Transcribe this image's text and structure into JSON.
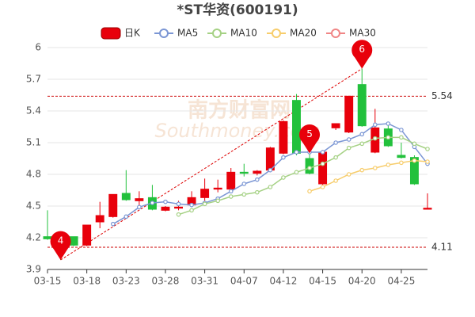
{
  "chart_data": {
    "type": "candlestick",
    "title": "*ST华资(600191)",
    "watermark": [
      "南方财富网",
      "Southmoney.com"
    ],
    "candle_name": "日K",
    "up_color": "#e8000b",
    "down_color": "#22c13c",
    "categories": [
      "03-15",
      null,
      null,
      "03-18",
      null,
      null,
      "03-23",
      null,
      null,
      "03-28",
      null,
      null,
      "03-31",
      null,
      null,
      "04-07",
      null,
      null,
      "04-12",
      null,
      null,
      "04-15",
      null,
      null,
      "04-20",
      null,
      null,
      "04-25",
      null,
      null
    ],
    "open": [
      4.21,
      4.19,
      4.21,
      4.13,
      4.35,
      4.4,
      4.62,
      4.55,
      4.58,
      4.46,
      4.48,
      4.51,
      4.58,
      4.66,
      4.66,
      4.82,
      4.81,
      4.84,
      5.0,
      5.5,
      4.95,
      4.71,
      5.24,
      5.2,
      5.65,
      5.01,
      5.23,
      4.98,
      4.96,
      4.47
    ],
    "high": [
      4.46,
      4.22,
      4.21,
      4.32,
      4.54,
      4.61,
      4.84,
      4.64,
      4.7,
      4.5,
      4.55,
      4.64,
      4.76,
      4.75,
      4.86,
      4.9,
      4.84,
      5.06,
      5.31,
      5.56,
      5.0,
      5.03,
      5.28,
      5.54,
      5.8,
      5.42,
      5.27,
      5.1,
      4.98,
      4.62
    ],
    "low": [
      4.18,
      3.99,
      4.12,
      4.12,
      4.29,
      4.39,
      4.55,
      4.5,
      4.46,
      4.45,
      4.46,
      4.49,
      4.55,
      4.63,
      4.64,
      4.78,
      4.79,
      4.82,
      4.99,
      4.98,
      4.8,
      4.7,
      5.22,
      5.19,
      5.25,
      5.0,
      5.06,
      4.95,
      4.7,
      4.47
    ],
    "close": [
      4.19,
      4.14,
      4.13,
      4.32,
      4.41,
      4.61,
      4.56,
      4.57,
      4.47,
      4.49,
      4.49,
      4.58,
      4.66,
      4.67,
      4.82,
      4.81,
      4.83,
      5.05,
      5.3,
      5.0,
      4.81,
      5.01,
      5.28,
      5.54,
      5.26,
      5.24,
      5.07,
      4.96,
      4.71,
      4.48
    ],
    "series": [
      {
        "name": "MA5",
        "color": "#7b96d4",
        "values": [
          null,
          null,
          null,
          null,
          null,
          4.33,
          4.4,
          4.49,
          4.53,
          4.54,
          4.52,
          4.51,
          4.53,
          4.57,
          4.64,
          4.71,
          4.75,
          4.84,
          4.96,
          5.01,
          5.01,
          5.01,
          5.1,
          5.13,
          5.18,
          5.27,
          5.28,
          5.22,
          5.06,
          4.9
        ]
      },
      {
        "name": "MA10",
        "color": "#a5d184",
        "values": [
          null,
          null,
          null,
          null,
          null,
          null,
          null,
          null,
          null,
          null,
          4.42,
          4.46,
          4.52,
          4.55,
          4.59,
          4.61,
          4.63,
          4.68,
          4.77,
          4.82,
          4.86,
          4.9,
          4.96,
          5.05,
          5.09,
          5.14,
          5.15,
          5.15,
          5.09,
          5.04
        ]
      },
      {
        "name": "MA20",
        "color": "#f7cd6c",
        "values": [
          null,
          null,
          null,
          null,
          null,
          null,
          null,
          null,
          null,
          null,
          null,
          null,
          null,
          null,
          null,
          null,
          null,
          null,
          null,
          null,
          4.64,
          4.68,
          4.74,
          4.8,
          4.84,
          4.86,
          4.89,
          4.91,
          4.93,
          4.92
        ]
      },
      {
        "name": "MA30",
        "color": "#f08585",
        "values": [
          null,
          null,
          null,
          null,
          null,
          null,
          null,
          null,
          null,
          null,
          null,
          null,
          null,
          null,
          null,
          null,
          null,
          null,
          null,
          null,
          null,
          null,
          null,
          null,
          null,
          null,
          null,
          null,
          null,
          null
        ]
      }
    ],
    "reference_lines": [
      5.54,
      4.11
    ],
    "markers": [
      {
        "label": "4",
        "index": 1
      },
      {
        "label": "5",
        "index": 20
      },
      {
        "label": "6",
        "index": 24
      }
    ],
    "ylim": [
      3.9,
      6
    ],
    "yticks": [
      3.9,
      4.2,
      4.5,
      4.8,
      5.1,
      5.4,
      5.7,
      6
    ],
    "grid": true
  }
}
